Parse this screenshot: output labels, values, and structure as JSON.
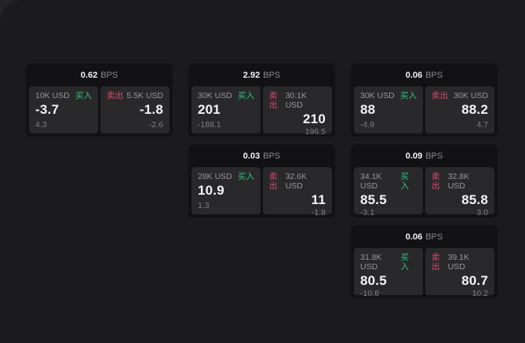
{
  "page": {
    "backdrop_color": "#242426",
    "panel_color": "#1b1b1d",
    "card_color": "#121214",
    "subpanel_color": "#29292b",
    "buy_color": "#2fc57a",
    "sell_color": "#db4a69"
  },
  "cards": [
    {
      "bps_value": "0.62",
      "bps_unit": "BPS",
      "buy": {
        "size": "10K USD",
        "side_label": "买入",
        "price": "-3.7",
        "delta": "4.3"
      },
      "sell": {
        "side_label": "卖出",
        "size": "5.5K USD",
        "price": "-1.8",
        "delta": "-2.6"
      }
    },
    {
      "bps_value": "2.92",
      "bps_unit": "BPS",
      "buy": {
        "size": "30K USD",
        "side_label": "买入",
        "price": "201",
        "delta": "-188.1"
      },
      "sell": {
        "side_label": "卖出",
        "size": "30.1K USD",
        "price": "210",
        "delta": "196.5"
      }
    },
    {
      "bps_value": "0.06",
      "bps_unit": "BPS",
      "buy": {
        "size": "30K USD",
        "side_label": "买入",
        "price": "88",
        "delta": "-4.9"
      },
      "sell": {
        "side_label": "卖出",
        "size": "30K USD",
        "price": "88.2",
        "delta": "4.7"
      }
    },
    {
      "bps_value": "0.03",
      "bps_unit": "BPS",
      "buy": {
        "size": "28K USD",
        "side_label": "买入",
        "price": "10.9",
        "delta": "1.3"
      },
      "sell": {
        "side_label": "卖出",
        "size": "32.6K USD",
        "price": "11",
        "delta": "-1.8"
      }
    },
    {
      "bps_value": "0.09",
      "bps_unit": "BPS",
      "buy": {
        "size": "34.1K USD",
        "side_label": "买入",
        "price": "85.5",
        "delta": "-3.1"
      },
      "sell": {
        "side_label": "卖出",
        "size": "32.8K USD",
        "price": "85.8",
        "delta": "3.0"
      }
    },
    {
      "bps_value": "0.06",
      "bps_unit": "BPS",
      "buy": {
        "size": "31.8K USD",
        "side_label": "买入",
        "price": "80.5",
        "delta": "-10.8"
      },
      "sell": {
        "side_label": "卖出",
        "size": "39.1K USD",
        "price": "80.7",
        "delta": "10.2"
      }
    }
  ]
}
